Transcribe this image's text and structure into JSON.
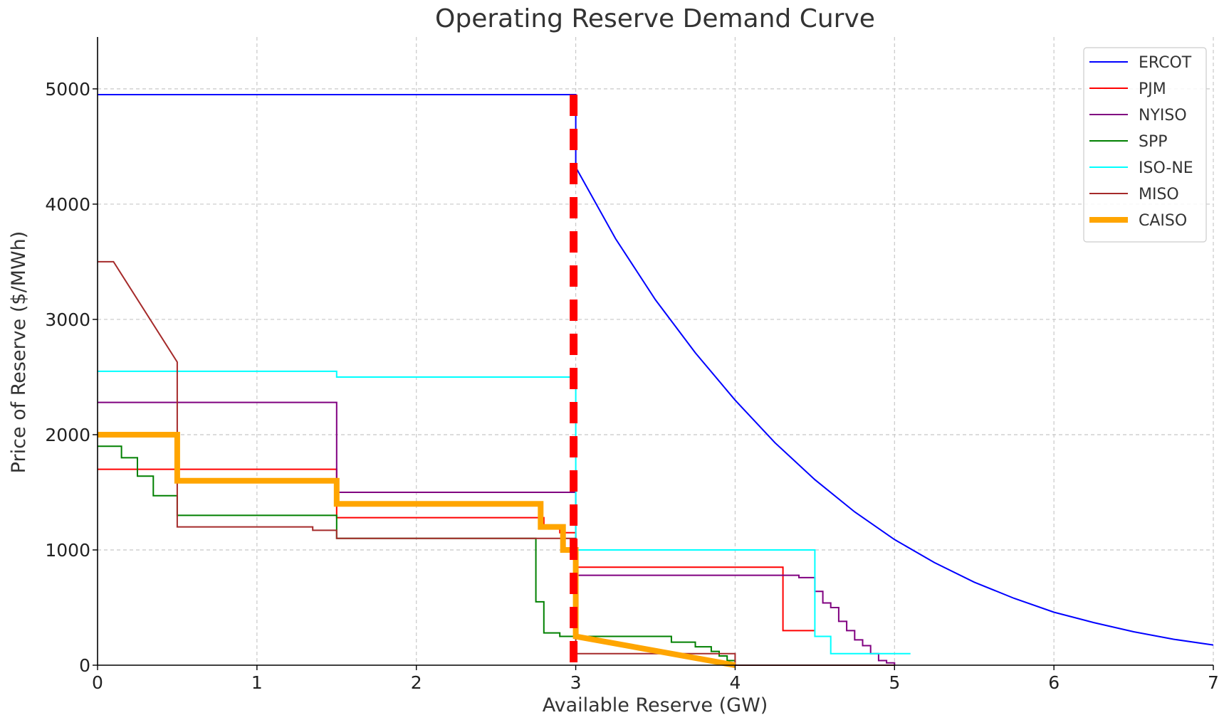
{
  "chart_data": {
    "type": "line",
    "title": "Operating Reserve Demand Curve",
    "xlabel": "Available Reserve (GW)",
    "ylabel": "Price of Reserve ($/MWh)",
    "xlim": [
      0,
      7
    ],
    "ylim": [
      0,
      5450
    ],
    "xticks": [
      0,
      1,
      2,
      3,
      4,
      5,
      6,
      7
    ],
    "yticks": [
      0,
      1000,
      2000,
      3000,
      4000,
      5000
    ],
    "grid": true,
    "legend_position": "top-right",
    "reference_line": {
      "x": 3.0,
      "color": "#ff0000",
      "style": "dashed"
    },
    "series": [
      {
        "name": "ERCOT",
        "color": "#0000ff",
        "width": 2,
        "x": [
          0,
          3.0,
          3.0,
          3.25,
          3.5,
          3.75,
          4.0,
          4.25,
          4.5,
          4.75,
          5.0,
          5.25,
          5.5,
          5.75,
          6.0,
          6.25,
          6.5,
          6.75,
          7.0
        ],
        "y": [
          4950,
          4950,
          4320,
          3700,
          3170,
          2710,
          2300,
          1930,
          1610,
          1330,
          1090,
          890,
          720,
          580,
          460,
          370,
          290,
          225,
          175
        ]
      },
      {
        "name": "PJM",
        "color": "#ff0000",
        "width": 2,
        "x": [
          0,
          1.5,
          1.5,
          2.8,
          2.8,
          2.9,
          2.9,
          3.0,
          3.0,
          4.3,
          4.3,
          4.5
        ],
        "y": [
          1700,
          1700,
          1280,
          1280,
          1200,
          1200,
          1150,
          1150,
          850,
          850,
          300,
          300
        ]
      },
      {
        "name": "NYISO",
        "color": "#800080",
        "width": 2,
        "x": [
          0,
          1.5,
          1.5,
          3.0,
          3.0,
          4.4,
          4.4,
          4.5,
          4.5,
          4.55,
          4.55,
          4.6,
          4.6,
          4.65,
          4.65,
          4.7,
          4.7,
          4.75,
          4.75,
          4.8,
          4.8,
          4.85,
          4.85,
          4.9,
          4.9,
          4.95,
          4.95,
          5.0,
          5.0
        ],
        "y": [
          2280,
          2280,
          1500,
          1500,
          780,
          780,
          760,
          760,
          640,
          640,
          540,
          540,
          500,
          500,
          380,
          380,
          300,
          300,
          220,
          220,
          170,
          170,
          100,
          100,
          40,
          40,
          20,
          20,
          0
        ]
      },
      {
        "name": "SPP",
        "color": "#008000",
        "width": 2,
        "x": [
          0,
          0.15,
          0.15,
          0.25,
          0.25,
          0.35,
          0.35,
          0.5,
          0.5,
          1.5,
          1.5,
          2.75,
          2.75,
          2.8,
          2.8,
          2.9,
          2.9,
          3.6,
          3.6,
          3.75,
          3.75,
          3.85,
          3.85,
          3.9,
          3.9,
          3.95,
          3.95,
          4.0,
          4.0
        ],
        "y": [
          1900,
          1900,
          1800,
          1800,
          1640,
          1640,
          1470,
          1470,
          1300,
          1300,
          1100,
          1100,
          550,
          550,
          280,
          280,
          250,
          250,
          200,
          200,
          160,
          160,
          120,
          120,
          80,
          80,
          40,
          40,
          0
        ]
      },
      {
        "name": "ISO-NE",
        "color": "#00ffff",
        "width": 2,
        "x": [
          0,
          1.5,
          1.5,
          3.0,
          3.0,
          4.5,
          4.5,
          4.6,
          4.6,
          5.1
        ],
        "y": [
          2550,
          2550,
          2500,
          2500,
          1000,
          1000,
          250,
          250,
          100,
          100
        ]
      },
      {
        "name": "MISO",
        "color": "#a52a2a",
        "width": 2,
        "x": [
          0,
          0.1,
          0.5,
          0.5,
          1.35,
          1.35,
          1.5,
          1.5,
          3.0,
          3.0,
          4.0,
          4.0,
          5.0
        ],
        "y": [
          3500,
          3500,
          2630,
          1200,
          1200,
          1170,
          1170,
          1100,
          1100,
          100,
          100,
          0,
          0
        ]
      },
      {
        "name": "CAISO",
        "color": "#ffa500",
        "width": 8,
        "x": [
          0,
          0.5,
          0.5,
          1.5,
          1.5,
          2.78,
          2.78,
          2.92,
          2.92,
          3.0,
          3.0,
          4.0
        ],
        "y": [
          2000,
          2000,
          1600,
          1600,
          1400,
          1400,
          1200,
          1200,
          1000,
          1000,
          250,
          0
        ]
      }
    ]
  }
}
